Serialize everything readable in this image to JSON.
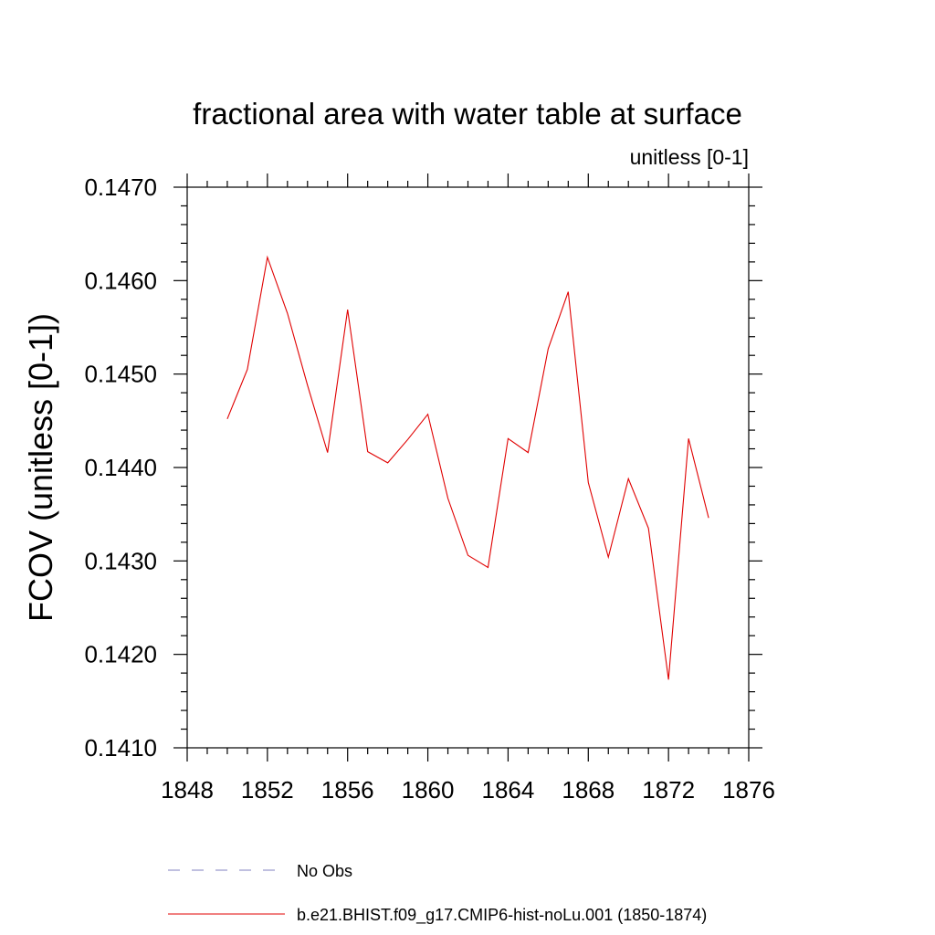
{
  "chart_data": {
    "type": "line",
    "title": "fractional area with water table at surface",
    "subtitle": "unitless [0-1]",
    "ylabel": "FCOV  (unitless [0-1])",
    "xlabel": "",
    "xlim": [
      1848,
      1876
    ],
    "ylim": [
      0.141,
      0.147
    ],
    "x_ticks": [
      "1848",
      "1852",
      "1856",
      "1860",
      "1864",
      "1868",
      "1872",
      "1876"
    ],
    "y_ticks": [
      "0.1410",
      "0.1420",
      "0.1430",
      "0.1440",
      "0.1450",
      "0.1460",
      "0.1470"
    ],
    "x_tick_values": [
      1848,
      1852,
      1856,
      1860,
      1864,
      1868,
      1872,
      1876
    ],
    "y_tick_values": [
      0.141,
      0.142,
      0.143,
      0.144,
      0.145,
      0.146,
      0.147
    ],
    "grid": false,
    "legend_position": "bottom",
    "series": [
      {
        "name": "No Obs",
        "color": "#8080c0",
        "dash": true,
        "x": [],
        "values": []
      },
      {
        "name": "b.e21.BHIST.f09_g17.CMIP6-hist-noLu.001 (1850-1874)",
        "color": "#e00000",
        "dash": false,
        "x": [
          1850,
          1851,
          1852,
          1853,
          1854,
          1855,
          1856,
          1857,
          1858,
          1859,
          1860,
          1861,
          1862,
          1863,
          1864,
          1865,
          1866,
          1867,
          1868,
          1869,
          1870,
          1871,
          1872,
          1873,
          1874
        ],
        "values": [
          0.14452,
          0.14505,
          0.14625,
          0.14565,
          0.14488,
          0.14416,
          0.14569,
          0.14417,
          0.14405,
          0.1443,
          0.14457,
          0.14367,
          0.14306,
          0.14293,
          0.14431,
          0.14416,
          0.14527,
          0.14588,
          0.14384,
          0.14304,
          0.14388,
          0.14335,
          0.14173,
          0.14431,
          0.14346
        ]
      }
    ]
  }
}
